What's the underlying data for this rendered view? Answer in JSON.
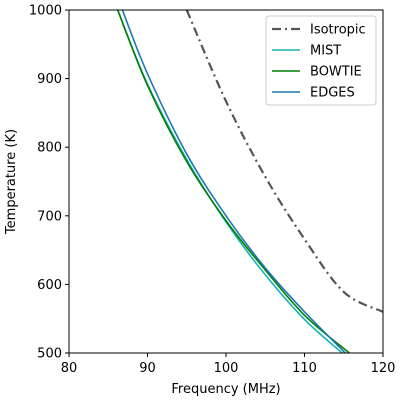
{
  "chart_data": {
    "type": "line",
    "title": "",
    "xlabel": "Frequency (MHz)",
    "ylabel": "Temperature (K)",
    "xlim": [
      80,
      120
    ],
    "ylim": [
      500,
      1000
    ],
    "xticks": [
      80,
      90,
      100,
      110,
      120
    ],
    "yticks": [
      500,
      600,
      700,
      800,
      900,
      1000
    ],
    "grid": false,
    "legend_position": "top-right",
    "series": [
      {
        "name": "Isotropic",
        "color": "#555555",
        "dash": "dash-dot",
        "x": [
          95,
          100,
          105,
          110,
          115,
          120
        ],
        "y": [
          1000,
          867,
          757,
          666,
          589,
          560
        ]
      },
      {
        "name": "MIST",
        "color": "#17b3b3",
        "dash": "solid",
        "x": [
          86.2,
          90,
          95,
          100,
          105,
          110,
          114.8
        ],
        "y": [
          1000,
          892,
          782,
          691,
          614,
          549,
          500
        ]
      },
      {
        "name": "BOWTIE",
        "color": "#008000",
        "dash": "solid",
        "x": [
          86.2,
          90,
          95,
          100,
          105,
          110,
          115.7
        ],
        "y": [
          1000,
          890,
          779,
          693,
          621,
          555,
          500
        ]
      },
      {
        "name": "EDGES",
        "color": "#1f77b4",
        "dash": "solid",
        "x": [
          86.8,
          90,
          95,
          100,
          105,
          110,
          115.2
        ],
        "y": [
          1000,
          907,
          790,
          700,
          624,
          560,
          500
        ]
      }
    ]
  }
}
